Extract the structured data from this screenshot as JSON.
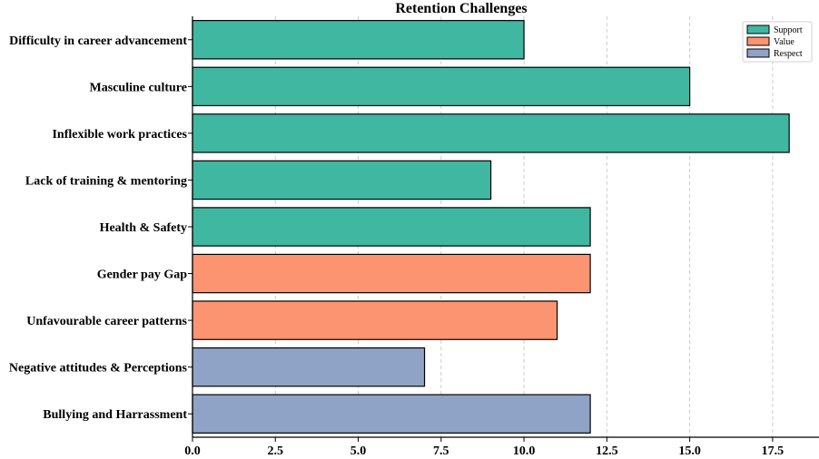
{
  "chart_data": {
    "type": "bar",
    "orientation": "horizontal",
    "title": "Retention Challenges",
    "xlabel": "",
    "ylabel": "",
    "xlim": [
      0,
      18.9
    ],
    "xticks": [
      0.0,
      2.5,
      5.0,
      7.5,
      10.0,
      12.5,
      15.0,
      17.5
    ],
    "xtick_labels": [
      "0.0",
      "2.5",
      "5.0",
      "7.5",
      "10.0",
      "12.5",
      "15.0",
      "17.5"
    ],
    "grid": "vertical dashed",
    "legend_position": "top-right",
    "categories": [
      "Difficulty in career advancement",
      "Masculine culture",
      "Inflexible work practices",
      "Lack of training & mentoring",
      "Health & Safety",
      "Gender pay Gap",
      "Unfavourable career patterns",
      "Negative attitudes & Perceptions",
      "Bullying and Harrassment"
    ],
    "values": [
      10,
      15,
      18,
      9,
      12,
      12,
      11,
      7,
      12
    ],
    "groups": [
      "Support",
      "Support",
      "Support",
      "Support",
      "Support",
      "Value",
      "Value",
      "Respect",
      "Respect"
    ],
    "legend": [
      {
        "name": "Support",
        "color": "#40b7a0"
      },
      {
        "name": "Value",
        "color": "#fc9472"
      },
      {
        "name": "Respect",
        "color": "#8fa3c6"
      }
    ]
  }
}
